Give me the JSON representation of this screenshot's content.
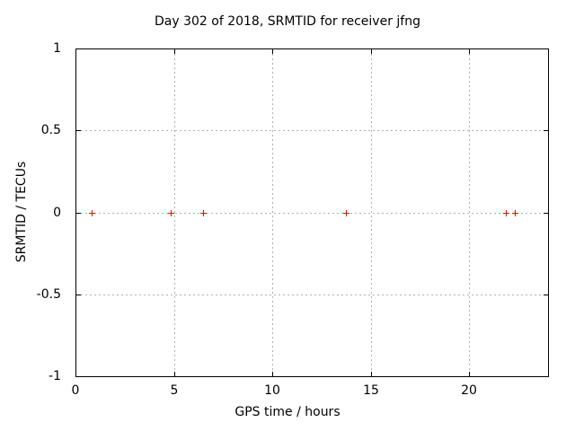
{
  "colors": {
    "background": "#ffffff",
    "text": "#000000",
    "axis_border": "#000000",
    "gridline": "#b0b0b0",
    "marker": "#ff0000"
  },
  "chart_data": {
    "type": "scatter",
    "title": "Day 302 of 2018, SRMTID for receiver jfng",
    "xlabel": "GPS time / hours",
    "ylabel": "SRMTID / TECUs",
    "xlim": [
      0,
      24
    ],
    "ylim": [
      -1,
      1
    ],
    "xticks": [
      0,
      5,
      10,
      15,
      20
    ],
    "xtick_labels": [
      "0",
      "5",
      "10",
      "15",
      "20"
    ],
    "yticks": [
      1,
      0.5,
      0,
      -0.5,
      -1
    ],
    "ytick_labels": [
      "1",
      "0.5",
      "0",
      "-0.5",
      "-1"
    ],
    "grid": true,
    "grid_style": "dashed",
    "legend": "none",
    "series": [
      {
        "name": "SRMTID",
        "marker": "plus",
        "color": "#ff0000",
        "x": [
          0.8,
          4.85,
          6.5,
          13.75,
          21.85,
          22.3
        ],
        "y": [
          0,
          0,
          0,
          0,
          0,
          0
        ]
      }
    ]
  }
}
